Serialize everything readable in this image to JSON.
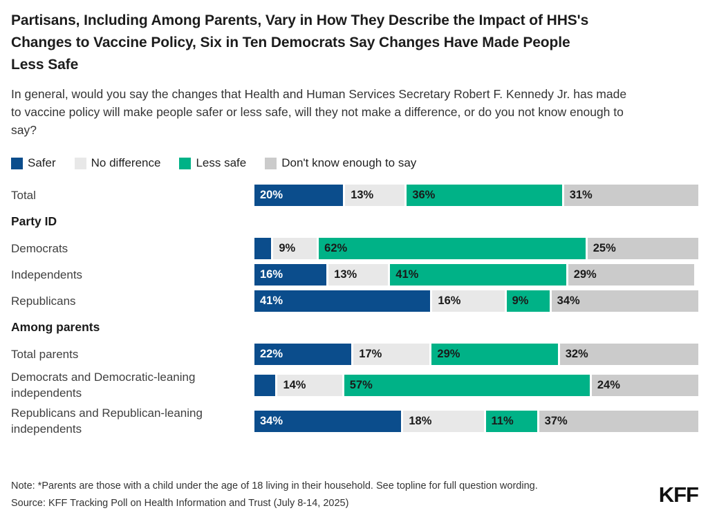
{
  "header": {
    "title": "Partisans, Including Among Parents, Vary in How They Describe the Impact of HHS's Changes to Vaccine Policy, Six in Ten Democrats Say Changes Have Made People Less Safe",
    "subtitle": "In general, would you say the changes that Health and Human Services Secretary Robert F. Kennedy Jr. has made to vaccine policy will make people safer or less safe, will they not make a difference, or do you not know enough to say?"
  },
  "chart_data": {
    "type": "bar",
    "orientation": "horizontal",
    "stacked": true,
    "unit": "percent",
    "xlim": [
      0,
      100
    ],
    "legend_position": "top",
    "series": [
      {
        "name": "Safer",
        "color": "#0b4d8c",
        "label_color": "#ffffff"
      },
      {
        "name": "No difference",
        "color": "#e8e8e8",
        "label_color": "#1a1a1a"
      },
      {
        "name": "Less safe",
        "color": "#00b287",
        "label_color": "#1a1a1a"
      },
      {
        "name": "Don't know enough to say",
        "color": "#cbcbcb",
        "label_color": "#1a1a1a"
      }
    ],
    "rows": [
      {
        "type": "bar",
        "label": "Total",
        "values": [
          20,
          13,
          36,
          31
        ],
        "display": [
          "20%",
          "13%",
          "36%",
          "31%"
        ]
      },
      {
        "type": "header",
        "label": "Party ID"
      },
      {
        "type": "bar",
        "label": "Democrats",
        "values": [
          4,
          9,
          62,
          25
        ],
        "display": [
          "",
          "9%",
          "62%",
          "25%"
        ]
      },
      {
        "type": "bar",
        "label": "Independents",
        "values": [
          16,
          13,
          41,
          29
        ],
        "display": [
          "16%",
          "13%",
          "41%",
          "29%"
        ]
      },
      {
        "type": "bar",
        "label": "Republicans",
        "values": [
          41,
          16,
          9,
          34
        ],
        "display": [
          "41%",
          "16%",
          "9%",
          "34%"
        ]
      },
      {
        "type": "header",
        "label": "Among parents"
      },
      {
        "type": "bar",
        "label": "Total parents",
        "values": [
          22,
          17,
          29,
          32
        ],
        "display": [
          "22%",
          "17%",
          "29%",
          "32%"
        ]
      },
      {
        "type": "bar",
        "label": "Democrats and Democratic-leaning independents",
        "values": [
          5,
          14,
          57,
          24
        ],
        "display": [
          "",
          "14%",
          "57%",
          "24%"
        ]
      },
      {
        "type": "bar",
        "label": "Republicans and Republican-leaning independents",
        "values": [
          34,
          18,
          11,
          37
        ],
        "display": [
          "34%",
          "18%",
          "11%",
          "37%"
        ]
      }
    ]
  },
  "footer": {
    "note": "Note: *Parents are those with a child under the age of 18 living in their household. See topline for full question wording.",
    "source": "Source: KFF Tracking Poll on Health Information and Trust (July 8-14, 2025)",
    "logo": "KFF"
  }
}
